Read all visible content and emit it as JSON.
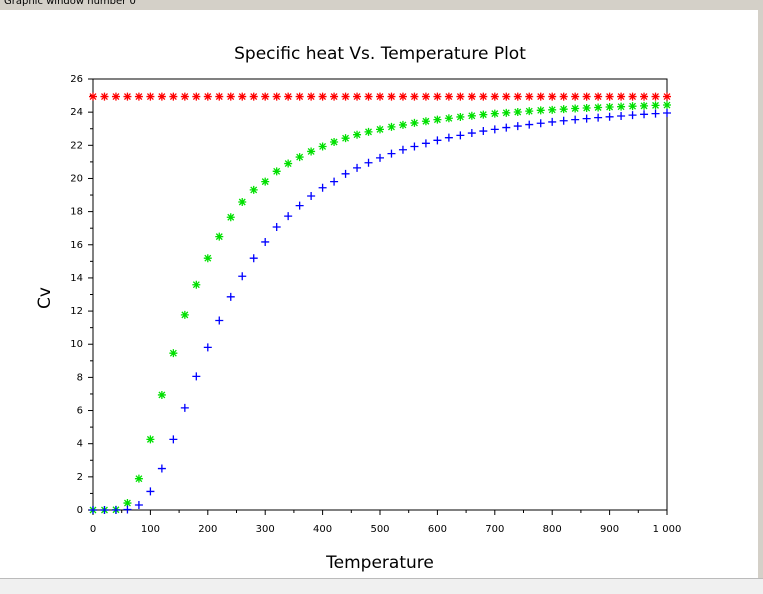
{
  "window_title": "Graphic window number 0",
  "chart_data": {
    "type": "scatter",
    "title": "Specific heat Vs. Temperature Plot",
    "xlabel": "Temperature",
    "ylabel": "Cv",
    "xlim": [
      0,
      1000
    ],
    "ylim": [
      0,
      26
    ],
    "xticks": [
      0,
      100,
      200,
      300,
      400,
      500,
      600,
      700,
      800,
      900,
      {
        "value": 1000,
        "label": "1 000"
      }
    ],
    "yticks": [
      0,
      2,
      4,
      6,
      8,
      10,
      12,
      14,
      16,
      18,
      20,
      22,
      24,
      26
    ],
    "x": [
      0,
      20,
      40,
      60,
      80,
      100,
      120,
      140,
      160,
      180,
      200,
      220,
      240,
      260,
      280,
      300,
      320,
      340,
      360,
      380,
      400,
      420,
      440,
      460,
      480,
      500,
      520,
      540,
      560,
      580,
      600,
      620,
      640,
      660,
      680,
      700,
      720,
      740,
      760,
      780,
      800,
      820,
      840,
      860,
      880,
      900,
      920,
      940,
      960,
      980,
      1000
    ],
    "series": [
      {
        "color": "#ff0000",
        "marker": "star",
        "values": [
          24.94,
          24.94,
          24.94,
          24.94,
          24.94,
          24.94,
          24.94,
          24.94,
          24.94,
          24.94,
          24.94,
          24.94,
          24.94,
          24.94,
          24.94,
          24.94,
          24.94,
          24.94,
          24.94,
          24.94,
          24.94,
          24.94,
          24.94,
          24.94,
          24.94,
          24.94,
          24.94,
          24.94,
          24.94,
          24.94,
          24.94,
          24.94,
          24.94,
          24.94,
          24.94,
          24.94,
          24.94,
          24.94,
          24.94,
          24.94,
          24.94,
          24.94,
          24.94,
          24.94,
          24.94,
          24.94,
          24.94,
          24.94,
          24.94,
          24.94,
          24.94
        ]
      },
      {
        "color": "#00e000",
        "marker": "star",
        "values": [
          0,
          0,
          0.015,
          0.42,
          1.89,
          4.26,
          6.94,
          9.46,
          11.77,
          13.59,
          15.19,
          16.49,
          17.66,
          18.58,
          19.31,
          19.81,
          20.43,
          20.9,
          21.29,
          21.63,
          21.93,
          22.2,
          22.43,
          22.64,
          22.81,
          22.96,
          23.11,
          23.23,
          23.35,
          23.45,
          23.55,
          23.63,
          23.71,
          23.78,
          23.85,
          23.91,
          23.96,
          24.01,
          24.06,
          24.11,
          24.14,
          24.18,
          24.22,
          24.25,
          24.28,
          24.31,
          24.33,
          24.36,
          24.38,
          24.41,
          24.43
        ]
      },
      {
        "color": "#0000ff",
        "marker": "plus",
        "values": [
          0,
          0,
          0,
          0.03,
          0.3,
          1.12,
          2.5,
          4.26,
          6.16,
          8.06,
          9.81,
          11.43,
          12.86,
          14.1,
          15.19,
          16.17,
          17.07,
          17.73,
          18.36,
          18.94,
          19.44,
          19.81,
          20.28,
          20.64,
          20.95,
          21.24,
          21.5,
          21.73,
          21.93,
          22.12,
          22.3,
          22.46,
          22.6,
          22.74,
          22.86,
          22.96,
          23.07,
          23.16,
          23.25,
          23.33,
          23.41,
          23.48,
          23.55,
          23.61,
          23.67,
          23.72,
          23.77,
          23.82,
          23.87,
          23.91,
          23.95
        ]
      }
    ]
  }
}
